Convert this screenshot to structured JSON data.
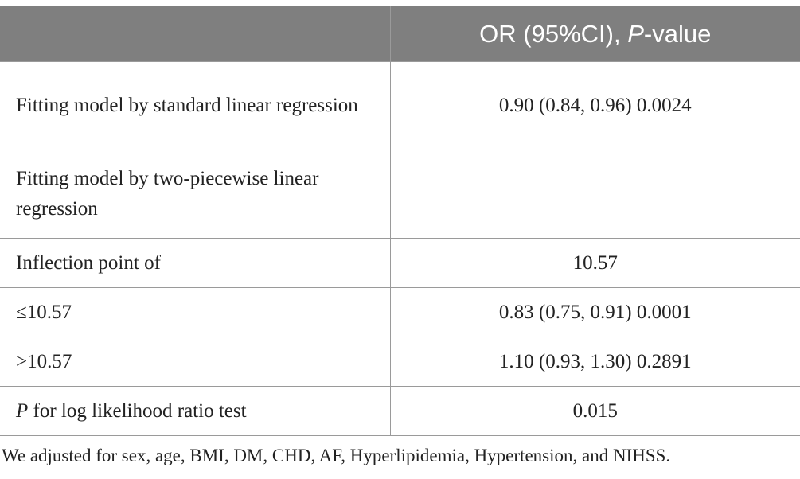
{
  "table": {
    "header": {
      "col1": "",
      "col2_prefix": "OR (95%CI), ",
      "col2_italic": "P",
      "col2_suffix": "-value"
    },
    "rows": [
      {
        "label": "Fitting model by standard linear regression",
        "value": "0.90 (0.84, 0.96) 0.0024"
      },
      {
        "label": "Fitting model by two-piecewise linear regression",
        "value": ""
      },
      {
        "label": "Inflection point of",
        "value": "10.57"
      },
      {
        "label": "≤10.57",
        "value": "0.83 (0.75, 0.91) 0.0001"
      },
      {
        "label": ">10.57",
        "value": "1.10 (0.93, 1.30) 0.2891"
      },
      {
        "label_italic": "P",
        "label_rest": " for log likelihood ratio test",
        "value": "0.015"
      }
    ]
  },
  "footnote": "We adjusted for sex, age, BMI, DM, CHD, AF, Hyperlipidemia, Hypertension, and NIHSS.",
  "colors": {
    "header_bg": "#7f7f7f",
    "header_text": "#ffffff",
    "grid": "#9a9a9a",
    "body_text": "#222222"
  }
}
